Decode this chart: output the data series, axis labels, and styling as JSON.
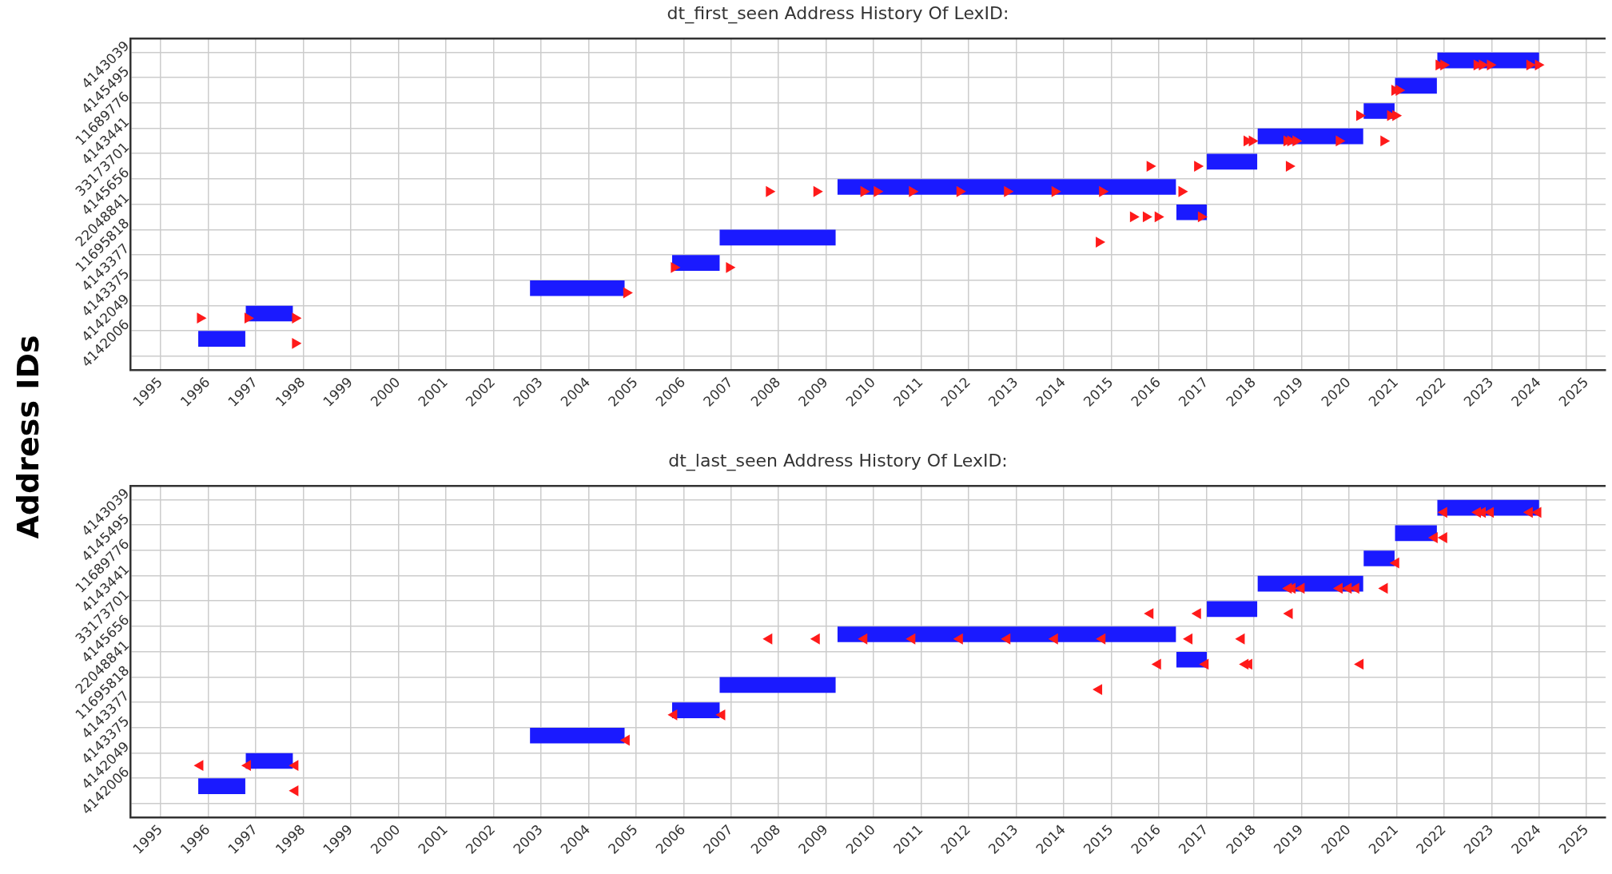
{
  "chart_data": [
    {
      "type": "bar",
      "orientation": "horizontal",
      "title": "dt_first_seen Address History Of LexID:",
      "ylabel": "Address IDs",
      "grid": true,
      "legend": false,
      "marker": "triangle",
      "categories": [
        "4143039",
        "4145495",
        "11689776",
        "4143441",
        "33173701",
        "4145656",
        "22048841",
        "11695818",
        "4143377",
        "4143375",
        "4142049",
        "4142006"
      ],
      "xlim": [
        1994.37,
        2025.4
      ],
      "xticks": [
        1995,
        1996,
        1997,
        1998,
        1999,
        2000,
        2001,
        2002,
        2003,
        2004,
        2005,
        2006,
        2007,
        2008,
        2009,
        2010,
        2011,
        2012,
        2013,
        2014,
        2015,
        2016,
        2017,
        2018,
        2019,
        2020,
        2021,
        2022,
        2023,
        2024,
        2025
      ],
      "series": [
        {
          "color": "#1a1aff",
          "base": [
            2021.86,
            2020.97,
            2020.31,
            2018.08,
            2017.01,
            2009.24,
            2016.37,
            2006.76,
            2005.76,
            2002.77,
            1996.79,
            1995.79
          ],
          "values": [
            2.14,
            0.88,
            0.65,
            2.22,
            1.06,
            7.12,
            0.64,
            2.44,
            1.0,
            1.99,
            0.99,
            0.99
          ]
        },
        {
          "type": "scatter",
          "color": "#ff1a1a",
          "x": [
            "4142006",
            "4142049",
            "4142049",
            "4142049",
            "4143375",
            "4143377",
            "4143377",
            "11695818",
            "22048841",
            "22048841",
            "22048841",
            "22048841",
            "4145656",
            "4145656",
            "4145656",
            "4145656",
            "4145656",
            "4145656",
            "4145656",
            "4145656",
            "4145656",
            "4145656",
            "33173701",
            "33173701",
            "33173701",
            "4143441",
            "4143441",
            "4143441",
            "4143441",
            "4143441",
            "4143441",
            "4143441",
            "11689776",
            "11689776",
            "11689776",
            "4145495",
            "4145495",
            "4143039",
            "4143039",
            "4143039",
            "4143039",
            "4143039",
            "4143039",
            "4143039"
          ],
          "values": [
            1997.83,
            1995.83,
            1996.83,
            1997.83,
            2004.8,
            2005.8,
            2006.96,
            2014.74,
            2015.46,
            2015.73,
            2015.98,
            2016.89,
            2007.8,
            2008.8,
            2009.79,
            2010.07,
            2010.81,
            2011.81,
            2012.81,
            2013.81,
            2014.81,
            2016.48,
            2015.81,
            2016.81,
            2018.74,
            2017.85,
            2017.96,
            2018.69,
            2018.77,
            2018.88,
            2019.79,
            2020.73,
            2020.22,
            2020.87,
            2020.98,
            2020.96,
            2021.05,
            2021.89,
            2021.99,
            2022.69,
            2022.8,
            2022.97,
            2023.8,
            2023.98
          ]
        }
      ]
    },
    {
      "type": "bar",
      "orientation": "horizontal",
      "title": "dt_last_seen Address History Of LexID:",
      "grid": true,
      "legend": false,
      "marker": "triangle",
      "categories": [
        "4143039",
        "4145495",
        "11689776",
        "4143441",
        "33173701",
        "4145656",
        "22048841",
        "11695818",
        "4143377",
        "4143375",
        "4142049",
        "4142006"
      ],
      "xlim": [
        1994.37,
        2025.4
      ],
      "xticks": [
        1995,
        1996,
        1997,
        1998,
        1999,
        2000,
        2001,
        2002,
        2003,
        2004,
        2005,
        2006,
        2007,
        2008,
        2009,
        2010,
        2011,
        2012,
        2013,
        2014,
        2015,
        2016,
        2017,
        2018,
        2019,
        2020,
        2021,
        2022,
        2023,
        2024,
        2025
      ],
      "series": [
        {
          "color": "#1a1aff",
          "base": [
            2021.86,
            2020.97,
            2020.31,
            2018.08,
            2017.01,
            2009.24,
            2016.37,
            2006.76,
            2005.76,
            2002.77,
            1996.79,
            1995.79
          ],
          "values": [
            2.14,
            0.88,
            0.65,
            2.22,
            1.06,
            7.12,
            0.64,
            2.44,
            1.0,
            1.99,
            0.99,
            0.99
          ]
        },
        {
          "type": "scatter",
          "color": "#ff1a1a",
          "x": [
            "4142006",
            "4142049",
            "4142049",
            "4142049",
            "4143375",
            "4143377",
            "4143377",
            "11695818",
            "22048841",
            "22048841",
            "22048841",
            "22048841",
            "22048841",
            "4145656",
            "4145656",
            "4145656",
            "4145656",
            "4145656",
            "4145656",
            "4145656",
            "4145656",
            "4145656",
            "4145656",
            "33173701",
            "33173701",
            "33173701",
            "4143441",
            "4143441",
            "4143441",
            "4143441",
            "4143441",
            "4143441",
            "4143441",
            "11689776",
            "4145495",
            "4145495",
            "4143039",
            "4143039",
            "4143039",
            "4143039",
            "4143039",
            "4143039"
          ],
          "values": [
            1997.83,
            1995.83,
            1996.83,
            1997.83,
            2004.8,
            2005.8,
            2006.81,
            2014.74,
            2015.98,
            2016.98,
            2017.82,
            2017.9,
            2020.24,
            2007.8,
            2008.8,
            2009.8,
            2010.81,
            2011.81,
            2012.81,
            2013.81,
            2014.81,
            2016.64,
            2017.74,
            2015.82,
            2016.82,
            2018.75,
            2018.73,
            2018.81,
            2019.0,
            2019.8,
            2019.99,
            2020.15,
            2020.75,
            2020.99,
            2021.8,
            2022.0,
            2022.0,
            2022.71,
            2022.81,
            2022.98,
            2023.8,
            2023.98
          ]
        }
      ]
    }
  ]
}
